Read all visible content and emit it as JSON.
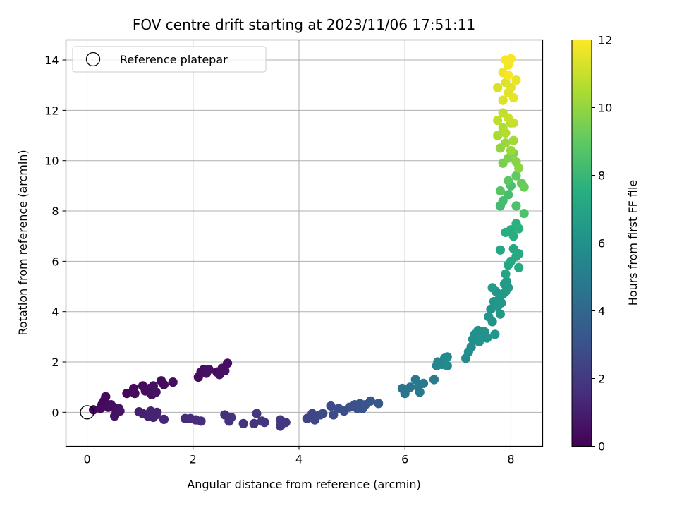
{
  "chart_data": {
    "type": "scatter",
    "title": "FOV centre drift starting at 2023/11/06 17:51:11",
    "xlabel": "Angular distance from reference (arcmin)",
    "ylabel": "Rotation from reference (arcmin)",
    "xlim": [
      -0.4,
      8.6
    ],
    "ylim": [
      -1.35,
      14.8
    ],
    "xticks": [
      "0",
      "2",
      "4",
      "6",
      "8"
    ],
    "yticks": [
      "0",
      "2",
      "4",
      "6",
      "8",
      "10",
      "12",
      "14"
    ],
    "grid": true,
    "legend": {
      "position": "top-left",
      "entries": [
        "Reference platepar"
      ]
    },
    "reference_point": {
      "x": 0,
      "y": 0
    },
    "colorbar": {
      "label": "Hours from first FF file",
      "range": [
        0,
        12
      ],
      "ticks": [
        "0",
        "2",
        "4",
        "6",
        "8",
        "10",
        "12"
      ],
      "colormap": "viridis"
    },
    "points": [
      [
        0.12,
        0.1,
        0.1
      ],
      [
        0.28,
        0.3,
        0.2
      ],
      [
        0.32,
        0.45,
        0.25
      ],
      [
        0.35,
        0.62,
        0.3
      ],
      [
        0.25,
        0.15,
        0.3
      ],
      [
        0.4,
        0.2,
        0.35
      ],
      [
        0.45,
        0.3,
        0.4
      ],
      [
        0.5,
        0.2,
        0.45
      ],
      [
        0.55,
        0.05,
        0.5
      ],
      [
        0.52,
        -0.15,
        0.55
      ],
      [
        0.6,
        0.15,
        0.55
      ],
      [
        0.62,
        0.05,
        0.6
      ],
      [
        0.75,
        0.75,
        0.2
      ],
      [
        0.88,
        0.95,
        0.25
      ],
      [
        0.9,
        0.75,
        0.3
      ],
      [
        1.05,
        1.05,
        0.35
      ],
      [
        1.1,
        0.85,
        0.4
      ],
      [
        1.18,
        0.95,
        0.45
      ],
      [
        1.22,
        0.7,
        0.5
      ],
      [
        1.25,
        1.05,
        0.55
      ],
      [
        1.3,
        0.8,
        0.6
      ],
      [
        1.4,
        1.25,
        0.3
      ],
      [
        1.45,
        1.1,
        0.35
      ],
      [
        1.62,
        1.2,
        0.4
      ],
      [
        2.1,
        1.4,
        0.35
      ],
      [
        2.15,
        1.6,
        0.4
      ],
      [
        2.2,
        1.7,
        0.45
      ],
      [
        2.25,
        1.55,
        0.5
      ],
      [
        2.3,
        1.7,
        0.55
      ],
      [
        2.45,
        1.6,
        0.45
      ],
      [
        2.55,
        1.75,
        0.5
      ],
      [
        2.6,
        1.65,
        0.55
      ],
      [
        2.65,
        1.95,
        0.45
      ],
      [
        2.5,
        1.5,
        0.55
      ],
      [
        0.98,
        0.02,
        1.0
      ],
      [
        1.05,
        -0.05,
        1.05
      ],
      [
        1.15,
        -0.15,
        1.1
      ],
      [
        1.2,
        0.05,
        1.15
      ],
      [
        1.25,
        -0.2,
        1.15
      ],
      [
        1.3,
        -0.1,
        1.2
      ],
      [
        1.32,
        0.0,
        1.2
      ],
      [
        1.45,
        -0.28,
        1.3
      ],
      [
        1.85,
        -0.25,
        1.4
      ],
      [
        1.95,
        -0.25,
        1.45
      ],
      [
        2.05,
        -0.3,
        1.5
      ],
      [
        2.15,
        -0.35,
        1.55
      ],
      [
        2.6,
        -0.1,
        1.6
      ],
      [
        2.68,
        -0.35,
        1.65
      ],
      [
        2.72,
        -0.2,
        1.7
      ],
      [
        2.95,
        -0.45,
        1.75
      ],
      [
        3.15,
        -0.45,
        1.8
      ],
      [
        3.2,
        -0.05,
        1.85
      ],
      [
        3.3,
        -0.35,
        1.85
      ],
      [
        3.35,
        -0.4,
        1.9
      ],
      [
        3.65,
        -0.55,
        1.95
      ],
      [
        3.65,
        -0.3,
        2.0
      ],
      [
        3.75,
        -0.4,
        2.0
      ],
      [
        4.15,
        -0.25,
        2.4
      ],
      [
        4.2,
        -0.2,
        2.45
      ],
      [
        4.25,
        -0.05,
        2.5
      ],
      [
        4.3,
        -0.3,
        2.55
      ],
      [
        4.4,
        -0.1,
        2.6
      ],
      [
        4.45,
        -0.05,
        2.65
      ],
      [
        4.6,
        0.25,
        2.7
      ],
      [
        4.65,
        -0.1,
        2.75
      ],
      [
        4.75,
        0.15,
        2.8
      ],
      [
        4.85,
        0.05,
        2.85
      ],
      [
        4.95,
        0.2,
        2.9
      ],
      [
        5.05,
        0.3,
        2.95
      ],
      [
        5.1,
        0.15,
        3.0
      ],
      [
        5.15,
        0.35,
        3.05
      ],
      [
        5.2,
        0.15,
        3.1
      ],
      [
        5.25,
        0.3,
        3.15
      ],
      [
        5.35,
        0.45,
        3.2
      ],
      [
        5.5,
        0.35,
        3.3
      ],
      [
        5.95,
        0.95,
        4.6
      ],
      [
        6.0,
        0.75,
        4.65
      ],
      [
        6.1,
        1.0,
        4.7
      ],
      [
        6.2,
        1.3,
        4.75
      ],
      [
        6.25,
        1.0,
        4.8
      ],
      [
        6.28,
        0.8,
        4.85
      ],
      [
        6.35,
        1.15,
        4.9
      ],
      [
        6.55,
        1.3,
        4.95
      ],
      [
        6.6,
        1.85,
        5.4
      ],
      [
        6.62,
        2.0,
        5.45
      ],
      [
        6.7,
        1.9,
        5.5
      ],
      [
        6.75,
        2.15,
        5.55
      ],
      [
        6.8,
        1.85,
        5.6
      ],
      [
        6.8,
        2.2,
        5.65
      ],
      [
        7.15,
        2.15,
        5.7
      ],
      [
        7.2,
        2.4,
        5.8
      ],
      [
        7.25,
        2.6,
        5.85
      ],
      [
        7.28,
        2.9,
        5.9
      ],
      [
        7.32,
        3.1,
        5.95
      ],
      [
        7.38,
        3.25,
        6.0
      ],
      [
        7.4,
        2.8,
        6.05
      ],
      [
        7.45,
        3.0,
        6.05
      ],
      [
        7.5,
        3.2,
        6.1
      ],
      [
        7.55,
        2.95,
        6.1
      ],
      [
        7.58,
        3.8,
        6.15
      ],
      [
        7.62,
        4.1,
        6.15
      ],
      [
        7.65,
        3.6,
        6.2
      ],
      [
        7.68,
        4.4,
        6.2
      ],
      [
        7.7,
        3.1,
        6.25
      ],
      [
        7.72,
        4.8,
        6.25
      ],
      [
        7.75,
        4.2,
        6.3
      ],
      [
        7.78,
        4.5,
        6.3
      ],
      [
        7.8,
        3.9,
        6.35
      ],
      [
        7.82,
        4.35,
        6.35
      ],
      [
        7.85,
        4.7,
        6.4
      ],
      [
        7.88,
        5.1,
        6.45
      ],
      [
        7.9,
        4.8,
        6.45
      ],
      [
        7.92,
        5.2,
        6.5
      ],
      [
        7.95,
        4.95,
        6.5
      ],
      [
        7.65,
        4.95,
        6.55
      ],
      [
        7.8,
        6.45,
        7.1
      ],
      [
        7.9,
        5.5,
        7.0
      ],
      [
        7.95,
        5.85,
        7.05
      ],
      [
        8.0,
        6.0,
        7.1
      ],
      [
        8.05,
        6.5,
        7.15
      ],
      [
        8.1,
        6.2,
        7.2
      ],
      [
        8.15,
        6.3,
        7.25
      ],
      [
        8.15,
        5.75,
        7.25
      ],
      [
        7.9,
        7.15,
        7.4
      ],
      [
        8.0,
        7.25,
        7.45
      ],
      [
        8.05,
        7.0,
        7.5
      ],
      [
        8.1,
        7.5,
        7.55
      ],
      [
        8.15,
        7.3,
        7.6
      ],
      [
        7.8,
        8.2,
        8.2
      ],
      [
        7.85,
        8.4,
        8.3
      ],
      [
        7.95,
        8.65,
        8.35
      ],
      [
        8.0,
        9.0,
        8.4
      ],
      [
        8.1,
        8.2,
        8.5
      ],
      [
        8.25,
        7.9,
        8.6
      ],
      [
        7.8,
        8.8,
        8.8
      ],
      [
        7.95,
        9.2,
        8.9
      ],
      [
        8.1,
        9.4,
        9.0
      ],
      [
        8.2,
        9.1,
        9.1
      ],
      [
        8.25,
        8.95,
        9.2
      ],
      [
        7.85,
        9.9,
        9.5
      ],
      [
        7.95,
        10.1,
        9.6
      ],
      [
        8.05,
        10.3,
        9.7
      ],
      [
        8.1,
        9.95,
        9.8
      ],
      [
        8.15,
        9.7,
        9.9
      ],
      [
        7.8,
        10.5,
        10.0
      ],
      [
        7.9,
        10.7,
        10.1
      ],
      [
        8.0,
        10.4,
        10.2
      ],
      [
        8.05,
        10.8,
        10.3
      ],
      [
        7.75,
        11.0,
        10.4
      ],
      [
        7.85,
        11.3,
        10.5
      ],
      [
        7.9,
        11.1,
        10.6
      ],
      [
        8.0,
        11.5,
        10.7
      ],
      [
        7.75,
        11.6,
        10.8
      ],
      [
        7.85,
        11.9,
        10.9
      ],
      [
        7.95,
        11.7,
        11.0
      ],
      [
        8.05,
        11.5,
        11.0
      ],
      [
        7.75,
        12.9,
        11.3
      ],
      [
        7.85,
        12.4,
        11.35
      ],
      [
        7.9,
        13.1,
        11.4
      ],
      [
        7.95,
        12.7,
        11.45
      ],
      [
        8.0,
        12.9,
        11.5
      ],
      [
        8.05,
        12.5,
        11.55
      ],
      [
        8.1,
        13.2,
        11.6
      ],
      [
        7.85,
        13.5,
        11.7
      ],
      [
        7.95,
        13.8,
        11.8
      ],
      [
        7.9,
        14.0,
        11.85
      ],
      [
        8.0,
        14.05,
        11.9
      ],
      [
        7.95,
        13.4,
        11.9
      ]
    ]
  }
}
